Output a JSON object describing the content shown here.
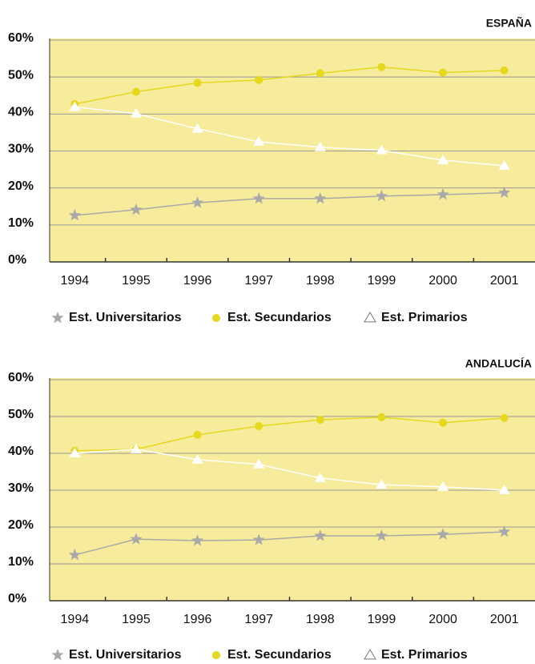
{
  "chart_data": [
    {
      "type": "line",
      "title": "ESPAÑA",
      "categories": [
        "1994",
        "1995",
        "1996",
        "1997",
        "1998",
        "1999",
        "2000",
        "2001"
      ],
      "series": [
        {
          "name": "Est. Universitarios",
          "color": "#a9a9a9",
          "marker": "star",
          "values": [
            12.6,
            14.1,
            16,
            17.1,
            17.1,
            17.8,
            18.2,
            18.7
          ]
        },
        {
          "name": "Est. Secundarios",
          "color": "#e6d81e",
          "marker": "circle",
          "values": [
            42.7,
            46,
            48.4,
            49.2,
            51,
            52.7,
            51.2,
            51.8
          ]
        },
        {
          "name": "Est. Primarios",
          "color": "#ffffff",
          "marker": "triangle",
          "values": [
            41.9,
            40.1,
            36,
            32.5,
            31,
            30.2,
            27.5,
            26
          ]
        }
      ],
      "ylim": [
        0,
        60
      ],
      "yticks": [
        {
          "value": 0,
          "label": "0%"
        },
        {
          "value": 10,
          "label": "10%"
        },
        {
          "value": 20,
          "label": "20%"
        },
        {
          "value": 30,
          "label": "30%"
        },
        {
          "value": 40,
          "label": "40%"
        },
        {
          "value": 50,
          "label": "50%"
        },
        {
          "value": 60,
          "label": "60%"
        }
      ],
      "grid": true,
      "legend": "bottom"
    },
    {
      "type": "line",
      "title": "ANDALUCÍA",
      "categories": [
        "1994",
        "1995",
        "1996",
        "1997",
        "1998",
        "1999",
        "2000",
        "2001"
      ],
      "series": [
        {
          "name": "Est. Universitarios",
          "color": "#a9a9a9",
          "marker": "star",
          "values": [
            12.4,
            16.7,
            16.3,
            16.5,
            17.6,
            17.6,
            18,
            18.7
          ]
        },
        {
          "name": "Est. Secundarios",
          "color": "#e6d81e",
          "marker": "circle",
          "values": [
            40.7,
            41.1,
            45,
            47.4,
            49.1,
            49.8,
            48.3,
            49.6
          ]
        },
        {
          "name": "Est. Primarios",
          "color": "#ffffff",
          "marker": "triangle",
          "values": [
            40,
            41.1,
            38.3,
            37,
            33.3,
            31.5,
            30.9,
            30
          ]
        }
      ],
      "ylim": [
        0,
        60
      ],
      "yticks": [
        {
          "value": 0,
          "label": "0%"
        },
        {
          "value": 10,
          "label": "10%"
        },
        {
          "value": 20,
          "label": "20%"
        },
        {
          "value": 30,
          "label": "30%"
        },
        {
          "value": 40,
          "label": "40%"
        },
        {
          "value": 50,
          "label": "50%"
        },
        {
          "value": 60,
          "label": "60%"
        }
      ],
      "grid": true,
      "legend": "bottom"
    }
  ]
}
